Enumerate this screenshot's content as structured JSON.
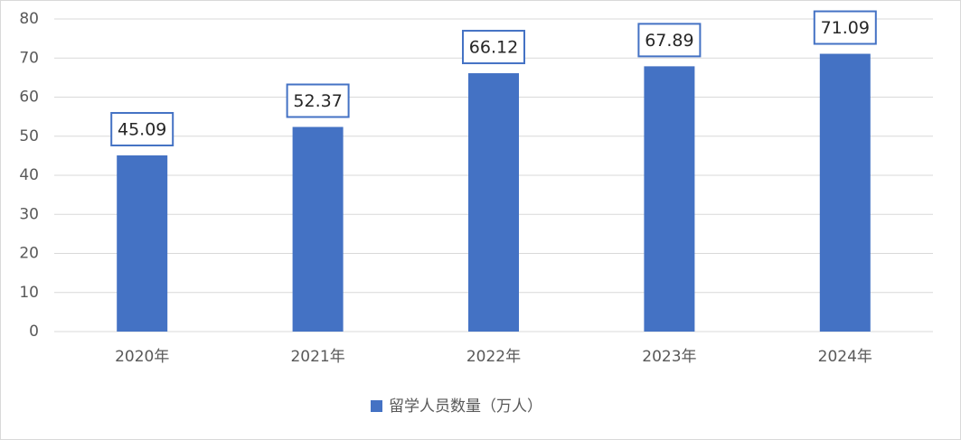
{
  "chart_data": {
    "type": "bar",
    "categories": [
      "2020年",
      "2021年",
      "2022年",
      "2023年",
      "2024年"
    ],
    "series": [
      {
        "name": "留学人员数量（万人）",
        "color": "#4472c4",
        "values": [
          45.09,
          52.37,
          66.12,
          67.89,
          71.09
        ]
      }
    ],
    "ylim": [
      0,
      80
    ],
    "yticks": [
      0,
      10,
      20,
      30,
      40,
      50,
      60,
      70,
      80
    ],
    "grid": true,
    "legend": "bottom"
  }
}
